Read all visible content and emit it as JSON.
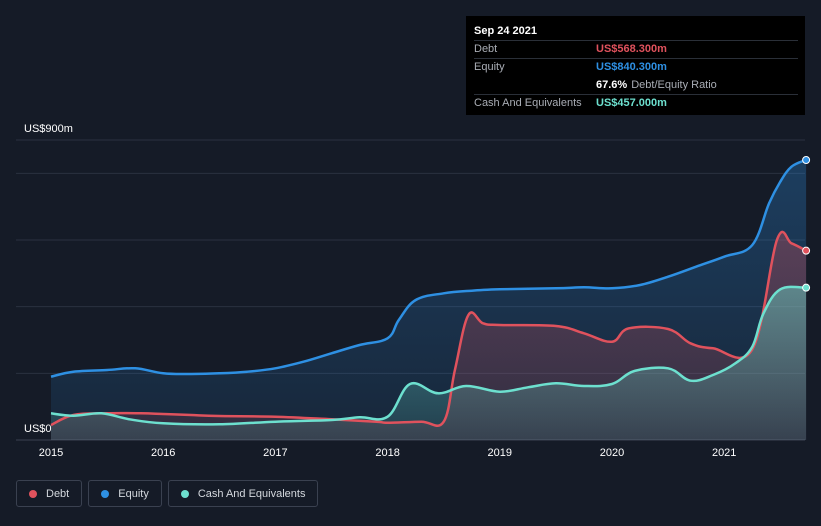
{
  "tooltip": {
    "date": "Sep 24 2021",
    "debt_label": "Debt",
    "debt_value": "US$568.300m",
    "equity_label": "Equity",
    "equity_value": "US$840.300m",
    "ratio_value": "67.6%",
    "ratio_label": "Debt/Equity Ratio",
    "cash_label": "Cash And Equivalents",
    "cash_value": "US$457.000m"
  },
  "legend": {
    "debt": "Debt",
    "equity": "Equity",
    "cash": "Cash And Equivalents"
  },
  "colors": {
    "debt": "#e0525d",
    "equity": "#2e90e3",
    "cash": "#6de0cf",
    "background": "#151b27"
  },
  "chart_data": {
    "type": "area",
    "y_unit": "US$m",
    "ylim": [
      0,
      900
    ],
    "y_tick_labels": [
      {
        "value": 900,
        "label": "US$900m"
      },
      {
        "value": 0,
        "label": "US$0"
      }
    ],
    "x_tick_labels": [
      "2015",
      "2016",
      "2017",
      "2018",
      "2019",
      "2020",
      "2021"
    ],
    "x_range": [
      2014.82,
      2021.8
    ],
    "grid": true,
    "series": [
      {
        "name": "Debt",
        "points": [
          [
            2015.0,
            45
          ],
          [
            2015.2,
            75
          ],
          [
            2015.5,
            80
          ],
          [
            2015.8,
            80
          ],
          [
            2016.0,
            78
          ],
          [
            2016.25,
            75
          ],
          [
            2016.5,
            72
          ],
          [
            2017.0,
            70
          ],
          [
            2017.5,
            62
          ],
          [
            2017.9,
            55
          ],
          [
            2018.0,
            52
          ],
          [
            2018.3,
            55
          ],
          [
            2018.5,
            55
          ],
          [
            2018.6,
            210
          ],
          [
            2018.72,
            375
          ],
          [
            2018.85,
            350
          ],
          [
            2019.0,
            345
          ],
          [
            2019.5,
            342
          ],
          [
            2019.75,
            320
          ],
          [
            2020.0,
            295
          ],
          [
            2020.15,
            335
          ],
          [
            2020.5,
            333
          ],
          [
            2020.7,
            290
          ],
          [
            2020.9,
            275
          ],
          [
            2021.25,
            272
          ],
          [
            2021.47,
            600
          ],
          [
            2021.6,
            590
          ],
          [
            2021.73,
            568
          ]
        ]
      },
      {
        "name": "Equity",
        "points": [
          [
            2015.0,
            190
          ],
          [
            2015.2,
            205
          ],
          [
            2015.5,
            210
          ],
          [
            2015.75,
            215
          ],
          [
            2016.0,
            200
          ],
          [
            2016.25,
            198
          ],
          [
            2016.5,
            200
          ],
          [
            2016.75,
            205
          ],
          [
            2017.0,
            215
          ],
          [
            2017.25,
            235
          ],
          [
            2017.5,
            260
          ],
          [
            2017.75,
            285
          ],
          [
            2018.0,
            305
          ],
          [
            2018.1,
            360
          ],
          [
            2018.25,
            420
          ],
          [
            2018.5,
            440
          ],
          [
            2018.75,
            448
          ],
          [
            2019.0,
            452
          ],
          [
            2019.5,
            455
          ],
          [
            2019.75,
            458
          ],
          [
            2020.0,
            455
          ],
          [
            2020.25,
            465
          ],
          [
            2020.5,
            490
          ],
          [
            2020.75,
            520
          ],
          [
            2021.0,
            550
          ],
          [
            2021.25,
            585
          ],
          [
            2021.4,
            710
          ],
          [
            2021.5,
            775
          ],
          [
            2021.6,
            820
          ],
          [
            2021.73,
            840
          ]
        ]
      },
      {
        "name": "Cash And Equivalents",
        "points": [
          [
            2015.0,
            80
          ],
          [
            2015.2,
            73
          ],
          [
            2015.45,
            80
          ],
          [
            2015.7,
            62
          ],
          [
            2016.0,
            50
          ],
          [
            2016.5,
            47
          ],
          [
            2017.0,
            55
          ],
          [
            2017.5,
            60
          ],
          [
            2017.75,
            68
          ],
          [
            2018.0,
            70
          ],
          [
            2018.2,
            168
          ],
          [
            2018.45,
            140
          ],
          [
            2018.7,
            162
          ],
          [
            2019.0,
            145
          ],
          [
            2019.25,
            158
          ],
          [
            2019.5,
            170
          ],
          [
            2019.75,
            162
          ],
          [
            2020.0,
            168
          ],
          [
            2020.2,
            207
          ],
          [
            2020.5,
            215
          ],
          [
            2020.7,
            178
          ],
          [
            2020.9,
            195
          ],
          [
            2021.1,
            230
          ],
          [
            2021.25,
            280
          ],
          [
            2021.35,
            380
          ],
          [
            2021.5,
            452
          ],
          [
            2021.73,
            457
          ]
        ]
      }
    ]
  }
}
